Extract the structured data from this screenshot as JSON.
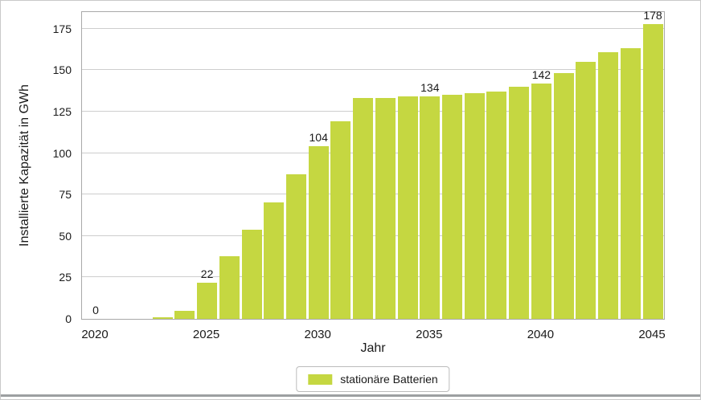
{
  "chart_data": {
    "type": "bar",
    "title": "",
    "xlabel": "Jahr",
    "ylabel": "Installierte Kapazität in GWh",
    "legend": {
      "label": "stationäre Batterien",
      "position": "bottom-center"
    },
    "bar_color": "#c5d741",
    "grid": "horizontal",
    "ylim": [
      0,
      175
    ],
    "yticks": [
      0,
      25,
      50,
      75,
      100,
      125,
      150,
      175
    ],
    "xticks": [
      "2020",
      "2025",
      "2030",
      "2035",
      "2040",
      "2045"
    ],
    "points": [
      {
        "year": 2020,
        "value": 0,
        "label": "0"
      },
      {
        "year": 2021,
        "value": 0
      },
      {
        "year": 2022,
        "value": 0
      },
      {
        "year": 2023,
        "value": 1
      },
      {
        "year": 2024,
        "value": 5
      },
      {
        "year": 2025,
        "value": 22,
        "label": "22"
      },
      {
        "year": 2026,
        "value": 38
      },
      {
        "year": 2027,
        "value": 54
      },
      {
        "year": 2028,
        "value": 70
      },
      {
        "year": 2029,
        "value": 87
      },
      {
        "year": 2030,
        "value": 104,
        "label": "104"
      },
      {
        "year": 2031,
        "value": 119
      },
      {
        "year": 2032,
        "value": 133
      },
      {
        "year": 2033,
        "value": 133
      },
      {
        "year": 2034,
        "value": 134
      },
      {
        "year": 2035,
        "value": 134,
        "label": "134"
      },
      {
        "year": 2036,
        "value": 135
      },
      {
        "year": 2037,
        "value": 136
      },
      {
        "year": 2038,
        "value": 137
      },
      {
        "year": 2039,
        "value": 140
      },
      {
        "year": 2040,
        "value": 142,
        "label": "142"
      },
      {
        "year": 2041,
        "value": 148
      },
      {
        "year": 2042,
        "value": 155
      },
      {
        "year": 2043,
        "value": 161
      },
      {
        "year": 2044,
        "value": 163
      },
      {
        "year": 2045,
        "value": 178,
        "label": "178"
      }
    ]
  }
}
